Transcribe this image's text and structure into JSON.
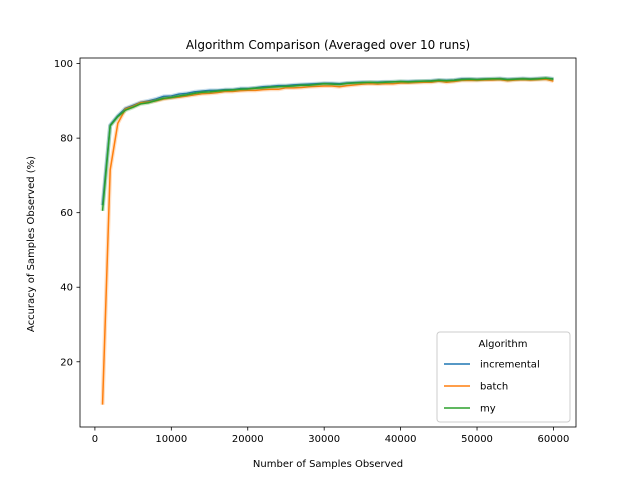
{
  "chart_data": {
    "type": "line",
    "title": "Algorithm Comparison (Averaged over 10 runs)",
    "xlabel": "Number of Samples Observed",
    "ylabel": "Accuracy of Samples Observed (%)",
    "xlim": [
      -1950,
      62950
    ],
    "ylim": [
      2.5,
      101.5
    ],
    "xticks": [
      0,
      10000,
      20000,
      30000,
      40000,
      50000,
      60000
    ],
    "yticks": [
      20,
      40,
      60,
      80,
      100
    ],
    "grid": false,
    "legend": {
      "title": "Algorithm",
      "position": "lower-right"
    },
    "series": [
      {
        "name": "incremental",
        "color": "#1f77b4",
        "x": [
          1000,
          2000,
          3000,
          4000,
          5000,
          6000,
          7000,
          8000,
          9000,
          10000,
          11000,
          12000,
          13000,
          14000,
          15000,
          16000,
          17000,
          18000,
          19000,
          20000,
          21000,
          22000,
          23000,
          24000,
          25000,
          26000,
          27000,
          28000,
          29000,
          30000,
          31000,
          32000,
          33000,
          34000,
          35000,
          36000,
          37000,
          38000,
          39000,
          40000,
          41000,
          42000,
          43000,
          44000,
          45000,
          46000,
          47000,
          48000,
          49000,
          50000,
          51000,
          52000,
          53000,
          54000,
          55000,
          56000,
          57000,
          58000,
          59000,
          60000
        ],
        "y": [
          62.0,
          83.5,
          86.0,
          88.0,
          88.8,
          89.6,
          90.0,
          90.5,
          91.2,
          91.3,
          91.8,
          92.0,
          92.4,
          92.6,
          92.8,
          92.8,
          93.0,
          93.0,
          93.3,
          93.3,
          93.5,
          93.8,
          93.9,
          94.1,
          94.1,
          94.3,
          94.4,
          94.5,
          94.6,
          94.7,
          94.7,
          94.6,
          94.8,
          94.9,
          95.0,
          95.0,
          95.0,
          95.1,
          95.1,
          95.2,
          95.2,
          95.3,
          95.3,
          95.4,
          95.6,
          95.5,
          95.6,
          95.9,
          95.9,
          95.8,
          95.9,
          95.9,
          96.0,
          95.8,
          95.9,
          96.0,
          95.9,
          96.0,
          96.1,
          95.9
        ]
      },
      {
        "name": "batch",
        "color": "#ff7f0e",
        "x": [
          1000,
          2000,
          3000,
          4000,
          5000,
          6000,
          7000,
          8000,
          9000,
          10000,
          11000,
          12000,
          13000,
          14000,
          15000,
          16000,
          17000,
          18000,
          19000,
          20000,
          21000,
          22000,
          23000,
          24000,
          25000,
          26000,
          27000,
          28000,
          29000,
          30000,
          31000,
          32000,
          33000,
          34000,
          35000,
          36000,
          37000,
          38000,
          39000,
          40000,
          41000,
          42000,
          43000,
          44000,
          45000,
          46000,
          47000,
          48000,
          49000,
          50000,
          51000,
          52000,
          53000,
          54000,
          55000,
          56000,
          57000,
          58000,
          59000,
          60000
        ],
        "y": [
          8.5,
          71.5,
          84.0,
          87.8,
          88.5,
          89.5,
          89.7,
          90.0,
          90.5,
          90.8,
          91.0,
          91.3,
          91.6,
          91.9,
          92.0,
          92.2,
          92.5,
          92.5,
          92.7,
          92.8,
          92.8,
          93.0,
          93.1,
          93.1,
          93.5,
          93.5,
          93.6,
          93.8,
          93.9,
          94.0,
          94.0,
          93.8,
          94.1,
          94.3,
          94.5,
          94.6,
          94.5,
          94.6,
          94.6,
          94.8,
          94.8,
          94.9,
          95.0,
          95.0,
          95.3,
          95.0,
          95.2,
          95.5,
          95.5,
          95.5,
          95.6,
          95.6,
          95.7,
          95.4,
          95.6,
          95.7,
          95.6,
          95.7,
          95.8,
          95.3
        ]
      },
      {
        "name": "my",
        "color": "#2ca02c",
        "x": [
          1000,
          2000,
          3000,
          4000,
          5000,
          6000,
          7000,
          8000,
          9000,
          10000,
          11000,
          12000,
          13000,
          14000,
          15000,
          16000,
          17000,
          18000,
          19000,
          20000,
          21000,
          22000,
          23000,
          24000,
          25000,
          26000,
          27000,
          28000,
          29000,
          30000,
          31000,
          32000,
          33000,
          34000,
          35000,
          36000,
          37000,
          38000,
          39000,
          40000,
          41000,
          42000,
          43000,
          44000,
          45000,
          46000,
          47000,
          48000,
          49000,
          50000,
          51000,
          52000,
          53000,
          54000,
          55000,
          56000,
          57000,
          58000,
          59000,
          60000
        ],
        "y": [
          60.5,
          83.3,
          85.8,
          87.5,
          88.3,
          89.2,
          89.5,
          90.1,
          90.7,
          90.9,
          91.3,
          91.6,
          92.0,
          92.3,
          92.4,
          92.6,
          92.8,
          92.9,
          93.1,
          93.2,
          93.4,
          93.5,
          93.7,
          93.8,
          93.9,
          94.0,
          94.2,
          94.2,
          94.4,
          94.6,
          94.5,
          94.4,
          94.7,
          94.8,
          94.9,
          95.0,
          94.9,
          95.0,
          95.1,
          95.2,
          95.1,
          95.2,
          95.3,
          95.3,
          95.5,
          95.4,
          95.5,
          95.7,
          95.8,
          95.7,
          95.8,
          95.9,
          95.9,
          95.7,
          95.8,
          95.9,
          95.8,
          95.9,
          96.1,
          95.8
        ]
      }
    ]
  }
}
